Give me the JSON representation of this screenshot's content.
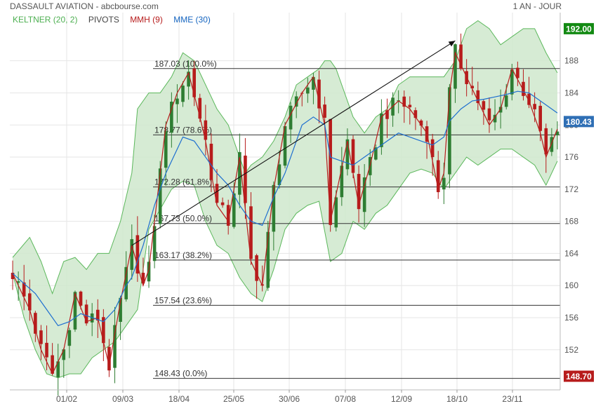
{
  "header": {
    "title": "DASSAULT AVIATION - abcbourse.com",
    "period": "1 AN - JOUR"
  },
  "legend": [
    {
      "label": "KELTNER (20, 2)",
      "color": "#4caf50"
    },
    {
      "label": "PIVOTS",
      "color": "#444444"
    },
    {
      "label": "MMH (9)",
      "color": "#b71c1c"
    },
    {
      "label": "MME (30)",
      "color": "#1565c0"
    }
  ],
  "colors": {
    "up": "#2e7d32",
    "down": "#b71c1c",
    "band_fill": "#cfe8cc",
    "band_line": "#5cb85c",
    "mmh": "#b71c1c",
    "mme": "#1e6fd0",
    "grid": "#e6e6e6",
    "pivot": "#333333",
    "badge_high": "#138a13",
    "badge_last": "#2f6fb5",
    "badge_low": "#b71c1c"
  },
  "chart_data": {
    "type": "candlestick",
    "y_axis": {
      "side": "right",
      "range": [
        147,
        194
      ],
      "ticks": [
        152,
        156,
        160,
        164,
        168,
        172,
        176,
        180,
        184,
        188
      ]
    },
    "x_tick_labels": [
      "01/02",
      "09/03",
      "18/04",
      "25/05",
      "30/06",
      "07/08",
      "12/09",
      "18/10",
      "23/11"
    ],
    "price_badges": {
      "high": 192.0,
      "last": 180.43,
      "low": 148.7
    },
    "pivot_levels": [
      {
        "price": 187.03,
        "label": "187.03  (100.0%)"
      },
      {
        "price": 178.77,
        "label": "178.77  (78.6%)"
      },
      {
        "price": 172.28,
        "label": "172.28  (61.8%)"
      },
      {
        "price": 167.73,
        "label": "167.73  (50.0%)"
      },
      {
        "price": 163.17,
        "label": "163.17  (38.2%)"
      },
      {
        "price": 157.54,
        "label": "157.54  (23.6%)"
      },
      {
        "price": 148.43,
        "label": "148.43  (0.0%)"
      }
    ],
    "trend_arrow": {
      "from": [
        21,
        165.0
      ],
      "to": [
        78,
        190.5
      ]
    },
    "close_path": [
      [
        0,
        161.5
      ],
      [
        3,
        157
      ],
      [
        5,
        152
      ],
      [
        7,
        149
      ],
      [
        9,
        152
      ],
      [
        11,
        159
      ],
      [
        13,
        155.5
      ],
      [
        15,
        156
      ],
      [
        17,
        150
      ],
      [
        19,
        158
      ],
      [
        21,
        165
      ],
      [
        23,
        160
      ],
      [
        24,
        162
      ],
      [
        27,
        180
      ],
      [
        29,
        184
      ],
      [
        31,
        186.5
      ],
      [
        33,
        181
      ],
      [
        34,
        178
      ],
      [
        36,
        170
      ],
      [
        38,
        168
      ],
      [
        40,
        176
      ],
      [
        42,
        163
      ],
      [
        44,
        160
      ],
      [
        46,
        172
      ],
      [
        48,
        180
      ],
      [
        51,
        184
      ],
      [
        53,
        186
      ],
      [
        55,
        180
      ],
      [
        56,
        168
      ],
      [
        59,
        178
      ],
      [
        61,
        170
      ],
      [
        63,
        175
      ],
      [
        65,
        181
      ],
      [
        68,
        183
      ],
      [
        70,
        182
      ],
      [
        73,
        179
      ],
      [
        75,
        172
      ],
      [
        76,
        174
      ],
      [
        77,
        184
      ],
      [
        78,
        189
      ],
      [
        80,
        186
      ],
      [
        82,
        183
      ],
      [
        84,
        180
      ],
      [
        86,
        182
      ],
      [
        88,
        187
      ],
      [
        91,
        183
      ],
      [
        93,
        179
      ],
      [
        94,
        176
      ],
      [
        96,
        179.5
      ]
    ],
    "mme_path": [
      [
        0,
        161.5
      ],
      [
        4,
        159
      ],
      [
        6,
        157
      ],
      [
        8,
        155
      ],
      [
        10,
        155.5
      ],
      [
        12,
        156.5
      ],
      [
        14,
        156
      ],
      [
        16,
        155.5
      ],
      [
        18,
        157
      ],
      [
        20,
        160
      ],
      [
        21,
        161
      ],
      [
        23,
        165
      ],
      [
        25,
        170
      ],
      [
        27,
        174
      ],
      [
        29,
        177
      ],
      [
        30,
        178.5
      ],
      [
        32,
        178
      ],
      [
        34,
        176
      ],
      [
        36,
        174
      ],
      [
        38,
        172.5
      ],
      [
        40,
        170
      ],
      [
        42,
        168
      ],
      [
        44,
        167.5
      ],
      [
        46,
        171
      ],
      [
        48,
        174
      ],
      [
        50,
        178
      ],
      [
        51,
        180
      ],
      [
        53,
        181
      ],
      [
        55,
        180
      ],
      [
        56,
        176
      ],
      [
        58,
        175.5
      ],
      [
        60,
        175
      ],
      [
        62,
        176
      ],
      [
        64,
        177
      ],
      [
        66,
        178
      ],
      [
        68,
        179
      ],
      [
        70,
        178.5
      ],
      [
        72,
        178
      ],
      [
        74,
        177.5
      ],
      [
        76,
        178.5
      ],
      [
        77,
        180.5
      ],
      [
        79,
        182
      ],
      [
        81,
        183
      ],
      [
        83,
        183.2
      ],
      [
        85,
        183.5
      ],
      [
        87,
        183.8
      ],
      [
        89,
        184.2
      ],
      [
        91,
        184
      ],
      [
        93,
        183
      ],
      [
        95,
        182
      ],
      [
        96,
        181.5
      ]
    ],
    "keltner_upper_path": [
      [
        0,
        163.5
      ],
      [
        3,
        166
      ],
      [
        5,
        163
      ],
      [
        7,
        159
      ],
      [
        9,
        163
      ],
      [
        11,
        163.5
      ],
      [
        13,
        162
      ],
      [
        15,
        164
      ],
      [
        17,
        164
      ],
      [
        19,
        168
      ],
      [
        21,
        174
      ],
      [
        22,
        182
      ],
      [
        24,
        184
      ],
      [
        26,
        184
      ],
      [
        28,
        186
      ],
      [
        30,
        189
      ],
      [
        32,
        188
      ],
      [
        34,
        185
      ],
      [
        36,
        182
      ],
      [
        38,
        180
      ],
      [
        40,
        176
      ],
      [
        41,
        174
      ],
      [
        42,
        175
      ],
      [
        44,
        176
      ],
      [
        46,
        178
      ],
      [
        48,
        181
      ],
      [
        50,
        185
      ],
      [
        52,
        186
      ],
      [
        54,
        187
      ],
      [
        55,
        188
      ],
      [
        56,
        188
      ],
      [
        57,
        187
      ],
      [
        58,
        185
      ],
      [
        59,
        183
      ],
      [
        60,
        181
      ],
      [
        62,
        179
      ],
      [
        64,
        181
      ],
      [
        66,
        182
      ],
      [
        68,
        185
      ],
      [
        70,
        186
      ],
      [
        72,
        186
      ],
      [
        74,
        186
      ],
      [
        76,
        186
      ],
      [
        78,
        188
      ],
      [
        80,
        192
      ],
      [
        82,
        193
      ],
      [
        84,
        192
      ],
      [
        86,
        190
      ],
      [
        88,
        191
      ],
      [
        90,
        192
      ],
      [
        92,
        192
      ],
      [
        94,
        189
      ],
      [
        96,
        186.5
      ]
    ],
    "keltner_lower_path": [
      [
        0,
        161.5
      ],
      [
        2,
        156
      ],
      [
        4,
        152
      ],
      [
        6,
        149
      ],
      [
        8,
        148.5
      ],
      [
        10,
        149
      ],
      [
        12,
        149
      ],
      [
        14,
        151
      ],
      [
        16,
        152
      ],
      [
        18,
        153
      ],
      [
        20,
        155
      ],
      [
        22,
        157
      ],
      [
        24,
        167
      ],
      [
        26,
        169.5
      ],
      [
        28,
        172
      ],
      [
        30,
        173
      ],
      [
        32,
        172.5
      ],
      [
        34,
        168
      ],
      [
        36,
        165
      ],
      [
        38,
        164
      ],
      [
        40,
        161
      ],
      [
        42,
        159
      ],
      [
        44,
        158
      ],
      [
        46,
        162
      ],
      [
        48,
        167
      ],
      [
        50,
        169
      ],
      [
        52,
        170
      ],
      [
        54,
        170.5
      ],
      [
        56,
        163
      ],
      [
        58,
        164
      ],
      [
        60,
        168
      ],
      [
        62,
        167
      ],
      [
        64,
        169
      ],
      [
        66,
        170
      ],
      [
        68,
        172
      ],
      [
        70,
        174
      ],
      [
        72,
        174.5
      ],
      [
        74,
        174
      ],
      [
        76,
        172
      ],
      [
        78,
        174
      ],
      [
        80,
        176
      ],
      [
        82,
        175
      ],
      [
        84,
        176
      ],
      [
        86,
        177
      ],
      [
        88,
        177
      ],
      [
        90,
        176
      ],
      [
        92,
        175
      ],
      [
        94,
        172.5
      ],
      [
        96,
        175.5
      ]
    ]
  }
}
